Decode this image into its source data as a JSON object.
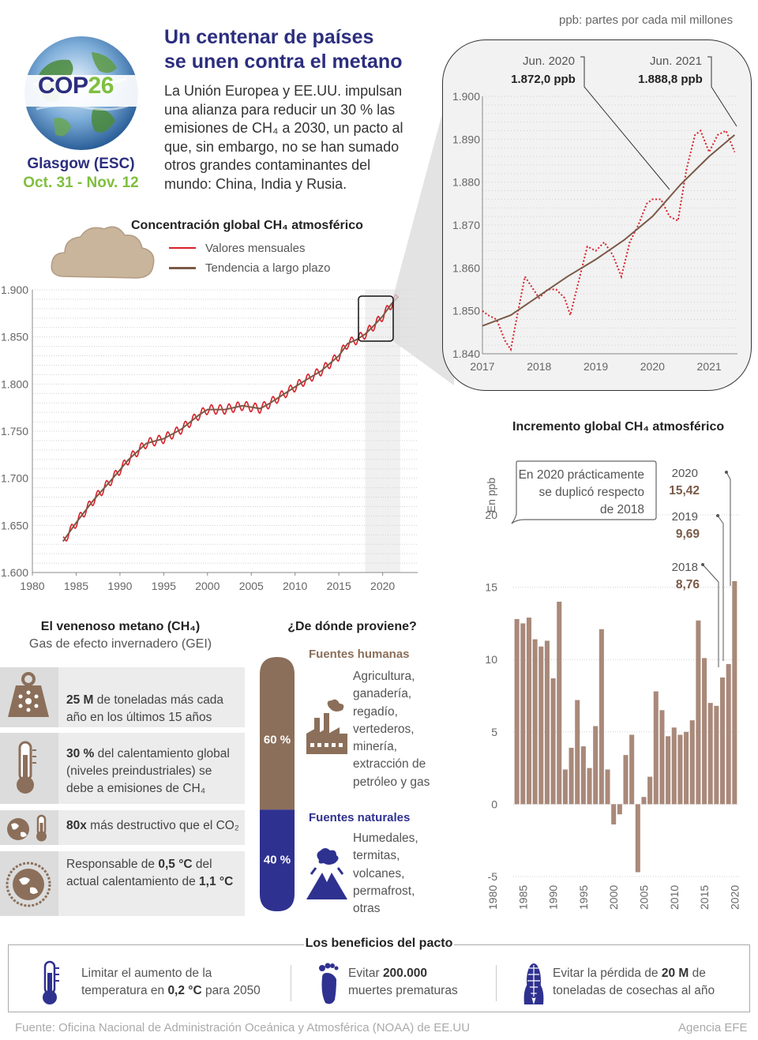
{
  "header": {
    "unit_note": "ppb: partes por cada mil millones",
    "title_line1": "Un centenar de países",
    "title_line2": "se unen contra el metano",
    "description": [
      "La Unión Europea y EE.UU. impulsan",
      "una alianza para reducir un 30 % las",
      "emisiones de CH₄ a 2030, un pacto al",
      "que, sin embargo, no se han sumado",
      "otros grandes contaminantes del",
      "mundo: China, India y Rusia."
    ],
    "cop_label_a": "COP",
    "cop_label_b": "26",
    "place": "Glasgow (ESC)",
    "dates": "Oct. 31 - Nov. 12"
  },
  "colors": {
    "navy": "#2c2e7e",
    "green": "#7fbf3f",
    "monthly_red": "#d9202a",
    "trend_brown": "#7a5a47",
    "bar_brown": "#a9897a",
    "human_brown": "#8b6f5a",
    "natural_blue": "#2f3190"
  },
  "chart_data": [
    {
      "id": "concentration",
      "type": "line",
      "title": "Concentración global CH₄ atmosférico",
      "legend": [
        "Valores mensuales",
        "Tendencia a largo plazo"
      ],
      "xlim": [
        1980,
        2024
      ],
      "ylim": [
        1600,
        1900
      ],
      "x_ticks": [
        "1980",
        "1985",
        "1990",
        "1995",
        "2000",
        "2005",
        "2010",
        "2015",
        "2020"
      ],
      "y_ticks": [
        "1.600",
        "1.650",
        "1.700",
        "1.750",
        "1.800",
        "1.850",
        "1.900"
      ],
      "highlight_range": [
        2018,
        2022
      ],
      "trend": {
        "x": [
          1983.5,
          1985,
          1987,
          1989,
          1991,
          1993,
          1995,
          1997,
          1999,
          2000,
          2002,
          2004,
          2006,
          2007,
          2009,
          2011,
          2013,
          2015,
          2016,
          2017,
          2018,
          2019,
          2020,
          2021,
          2021.8
        ],
        "y": [
          1633,
          1653,
          1677,
          1698,
          1720,
          1737,
          1742,
          1752,
          1767,
          1773,
          1773,
          1777,
          1774,
          1779,
          1791,
          1803,
          1814,
          1830,
          1843,
          1847,
          1853,
          1862,
          1872,
          1885,
          1893
        ]
      }
    },
    {
      "id": "zoom",
      "type": "line",
      "title": "",
      "xlim": [
        2017,
        2021.5
      ],
      "ylim": [
        1840,
        1900
      ],
      "x_ticks": [
        "2017",
        "2018",
        "2019",
        "2020",
        "2021"
      ],
      "y_ticks": [
        "1.840",
        "1.850",
        "1.860",
        "1.870",
        "1.880",
        "1.890",
        "1.900"
      ],
      "annotations": [
        {
          "label": "Jun. 2020",
          "value": "1.872,0 ppb"
        },
        {
          "label": "Jun. 2021",
          "value": "1.888,8 ppb"
        }
      ],
      "monthly": {
        "x": [
          2017.0,
          2017.1,
          2017.25,
          2017.4,
          2017.5,
          2017.6,
          2017.75,
          2017.85,
          2018.0,
          2018.15,
          2018.3,
          2018.45,
          2018.55,
          2018.7,
          2018.85,
          2019.0,
          2019.15,
          2019.3,
          2019.45,
          2019.6,
          2019.75,
          2019.9,
          2020.0,
          2020.15,
          2020.3,
          2020.45,
          2020.6,
          2020.75,
          2020.85,
          2021.0,
          2021.15,
          2021.3,
          2021.45
        ],
        "y": [
          1850,
          1849,
          1848,
          1843,
          1841,
          1848,
          1858,
          1856,
          1853,
          1855,
          1855,
          1853,
          1849,
          1857,
          1865,
          1864,
          1866,
          1863,
          1858,
          1866,
          1870,
          1875,
          1876,
          1876,
          1872,
          1871,
          1883,
          1891,
          1892,
          1887,
          1891,
          1892,
          1887
        ]
      },
      "trend": {
        "x": [
          2017.0,
          2017.5,
          2018.0,
          2018.5,
          2019.0,
          2019.5,
          2020.0,
          2020.5,
          2021.0,
          2021.45
        ],
        "y": [
          1846.5,
          1849,
          1853.5,
          1858,
          1862,
          1866.5,
          1872,
          1879.5,
          1886,
          1891
        ]
      }
    },
    {
      "id": "increase",
      "type": "bar",
      "title": "Incremento global CH₄ atmosférico",
      "ylabel": "En ppb",
      "ylim": [
        -5,
        20
      ],
      "y_ticks": [
        "-5",
        "0",
        "5",
        "10",
        "15",
        "20"
      ],
      "x_ticks": [
        "1980",
        "1985",
        "1990",
        "1995",
        "2000",
        "2005",
        "2010",
        "2015",
        "2020"
      ],
      "xlim": [
        1980,
        2021
      ],
      "callout": [
        "En 2020 prácticamente",
        "se duplicó respecto",
        "de 2018"
      ],
      "labels": [
        {
          "year": "2018",
          "value": "8,76"
        },
        {
          "year": "2019",
          "value": "9,69"
        },
        {
          "year": "2020",
          "value": "15,42"
        }
      ],
      "categories": [
        1984,
        1985,
        1986,
        1987,
        1988,
        1989,
        1990,
        1991,
        1992,
        1993,
        1994,
        1995,
        1996,
        1997,
        1998,
        1999,
        2000,
        2001,
        2002,
        2003,
        2004,
        2005,
        2006,
        2007,
        2008,
        2009,
        2010,
        2011,
        2012,
        2013,
        2014,
        2015,
        2016,
        2017,
        2018,
        2019,
        2020
      ],
      "values": [
        12.8,
        12.5,
        12.9,
        11.4,
        10.9,
        11.3,
        8.7,
        14.0,
        2.4,
        3.9,
        7.2,
        4.0,
        2.5,
        5.4,
        12.1,
        2.4,
        -1.4,
        -0.7,
        3.4,
        4.8,
        -4.7,
        0.5,
        1.9,
        7.8,
        6.5,
        4.7,
        5.3,
        4.8,
        5.0,
        5.8,
        12.7,
        10.1,
        7.0,
        6.8,
        8.76,
        9.69,
        15.42
      ]
    }
  ],
  "poison": {
    "title": "El venenoso metano (CH₄)",
    "subtitle": "Gas de efecto invernadero (GEI)",
    "facts": [
      {
        "bold": "25 M",
        "rest_line1": " de toneladas más cada",
        "rest_line2": "año en los últimos 15 años"
      },
      {
        "bold": "30 %",
        "rest_line1": " del calentamiento global",
        "rest_line2": "(niveles preindustriales) se",
        "rest_line3": "debe a emisiones de CH₄"
      },
      {
        "bold": "80x",
        "rest_line1": " más destructivo que el CO₂"
      },
      {
        "pre": "Responsable de ",
        "bold": "0,5 °C",
        "rest_line1": " del",
        "line2_pre": "actual calentamiento de ",
        "bold2": "1,1 °C"
      }
    ]
  },
  "sources": {
    "title": "¿De dónde proviene?",
    "human_title": "Fuentes humanas",
    "human_pct": "60 %",
    "human_value": 60,
    "human_items": [
      "Agricultura,",
      "ganadería,",
      "regadío,",
      "vertederos,",
      "minería,",
      "extracción de",
      "petróleo y gas"
    ],
    "natural_title": "Fuentes naturales",
    "natural_pct": "40 %",
    "natural_value": 40,
    "natural_items": [
      "Humedales,",
      "termitas,",
      "volcanes,",
      "permafrost,",
      "otras"
    ]
  },
  "benefits": {
    "title": "Los beneficios del pacto",
    "b1_line1": "Limitar el aumento de la",
    "b1_line2_pre": "temperatura en ",
    "b1_bold": "0,2 °C",
    "b1_line2_post": " para 2050",
    "b2_pre": "Evitar ",
    "b2_bold": "200.000",
    "b2_line2": "muertes prematuras",
    "b3_pre": "Evitar la pérdida de ",
    "b3_bold": "20 M",
    "b3_post": " de",
    "b3_line2": "toneladas de cosechas al año"
  },
  "footer": {
    "source": "Fuente: Oficina Nacional de Administración Oceánica y Atmosférica (NOAA) de EE.UU",
    "agency": "Agencia EFE"
  },
  "icons": [
    "globe-icon",
    "cloud-icon",
    "weight-icon",
    "thermometer-icon",
    "earth-thermometer-icon",
    "globe-grid-icon",
    "factory-icon",
    "volcano-icon",
    "foot-icon",
    "corn-icon"
  ]
}
